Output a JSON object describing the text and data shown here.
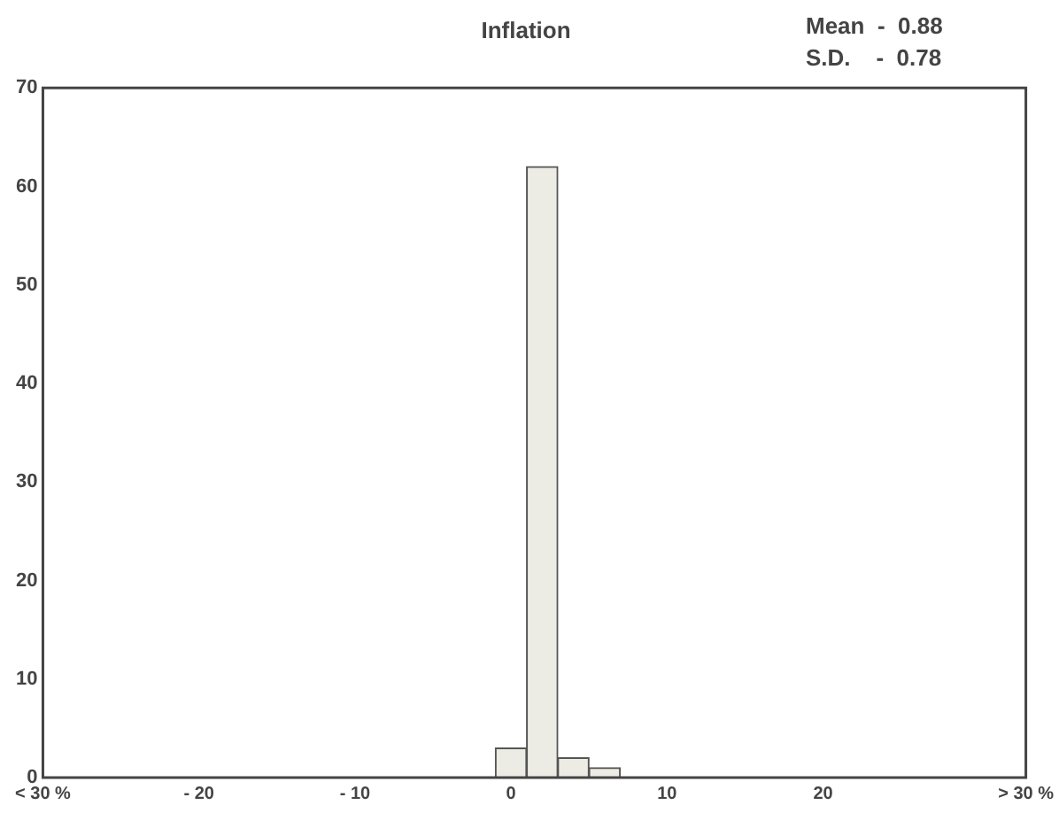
{
  "chart_data": {
    "type": "histogram",
    "title": "Inflation",
    "annotations": [
      "Mean  -  0.88",
      "S.D.    -  0.78"
    ],
    "bins": [
      -1,
      1,
      3,
      5,
      7
    ],
    "values": [
      3,
      62,
      2,
      1
    ],
    "color": "#ecece4",
    "xlim": [
      -30,
      33
    ],
    "xticks": [
      {
        "value": -30,
        "label": "< 30 %"
      },
      {
        "value": -20,
        "label": "- 20"
      },
      {
        "value": -10,
        "label": "- 10"
      },
      0,
      10,
      20,
      {
        "value": 33,
        "label": "> 30 %"
      }
    ],
    "ylim": [
      0,
      70
    ],
    "yticks": [
      0,
      10,
      20,
      30,
      40,
      50,
      60,
      70
    ],
    "grid": false,
    "legend": false
  }
}
